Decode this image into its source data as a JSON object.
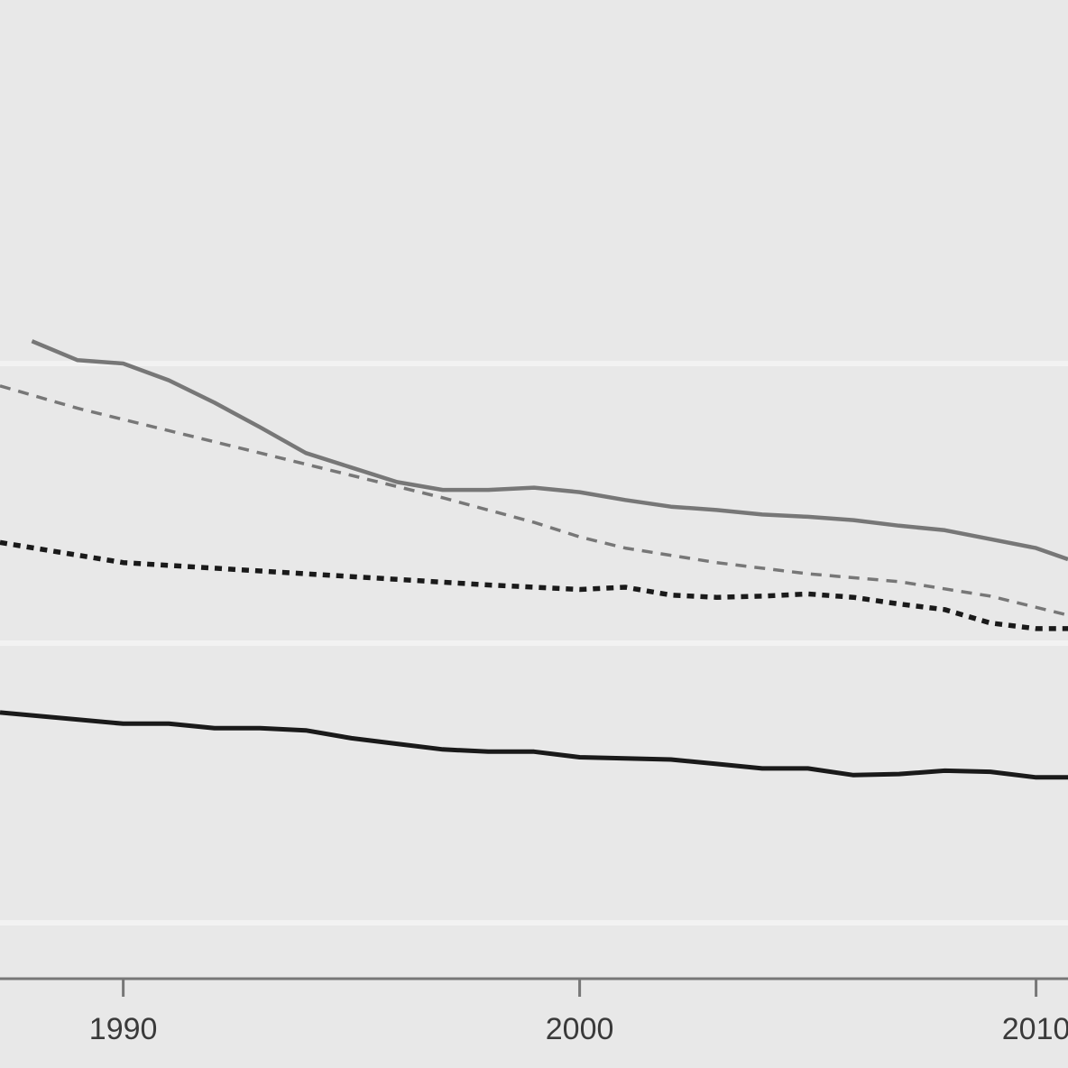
{
  "chart_data": {
    "type": "line",
    "xlim": [
      1987.3,
      2010.7
    ],
    "ylim": [
      0,
      0.875
    ],
    "x_ticks": [
      1990,
      2000,
      2010
    ],
    "x_tick_labels": [
      "1990",
      "2000",
      "2010"
    ],
    "y_gridlines": [
      0.05,
      0.3,
      0.55
    ],
    "grid": true,
    "legend": "none",
    "colors": {
      "background": "#e8e8e8",
      "grid": "#f2f2f2",
      "axis": "#777777",
      "gray_series": "#777777",
      "black_series": "#1a1a1a"
    },
    "series": [
      {
        "style": "gray-solid",
        "x": [
          1988,
          1989,
          1990,
          1991,
          1992,
          1993,
          1994,
          1995,
          1996,
          1997,
          1998,
          1999,
          2000,
          2001,
          2002,
          2003,
          2004,
          2005,
          2006,
          2007,
          2008,
          2009,
          2010,
          2010.7
        ],
        "y": [
          0.57,
          0.553,
          0.55,
          0.535,
          0.515,
          0.493,
          0.47,
          0.457,
          0.444,
          0.437,
          0.437,
          0.439,
          0.435,
          0.428,
          0.422,
          0.419,
          0.415,
          0.413,
          0.41,
          0.405,
          0.401,
          0.393,
          0.385,
          0.375
        ]
      },
      {
        "style": "gray-dashed",
        "x": [
          1987.3,
          1989,
          1991,
          1993,
          1995,
          1997,
          1999,
          2000,
          2001,
          2003,
          2005,
          2007,
          2009,
          2010.7
        ],
        "y": [
          0.53,
          0.51,
          0.49,
          0.47,
          0.45,
          0.43,
          0.408,
          0.395,
          0.385,
          0.372,
          0.362,
          0.355,
          0.342,
          0.325
        ]
      },
      {
        "style": "black-dotted",
        "x": [
          1987.3,
          1990,
          1992,
          1994,
          1996,
          1998,
          2000,
          2001,
          2002,
          2003,
          2004,
          2005,
          2006,
          2007,
          2008,
          2009,
          2010,
          2010.7
        ],
        "y": [
          0.39,
          0.372,
          0.367,
          0.362,
          0.357,
          0.352,
          0.348,
          0.35,
          0.343,
          0.341,
          0.342,
          0.344,
          0.341,
          0.335,
          0.33,
          0.318,
          0.313,
          0.313
        ]
      },
      {
        "style": "black-solid",
        "x": [
          1987.3,
          1990,
          1991,
          1992,
          1993,
          1994,
          1995,
          1996,
          1997,
          1998,
          1999,
          2000,
          2001,
          2002,
          2003,
          2004,
          2005,
          2006,
          2007,
          2008,
          2009,
          2010,
          2010.7
        ],
        "y": [
          0.238,
          0.228,
          0.228,
          0.224,
          0.224,
          0.222,
          0.215,
          0.21,
          0.205,
          0.203,
          0.203,
          0.198,
          0.197,
          0.196,
          0.192,
          0.188,
          0.188,
          0.182,
          0.183,
          0.186,
          0.185,
          0.18,
          0.18
        ]
      }
    ]
  }
}
